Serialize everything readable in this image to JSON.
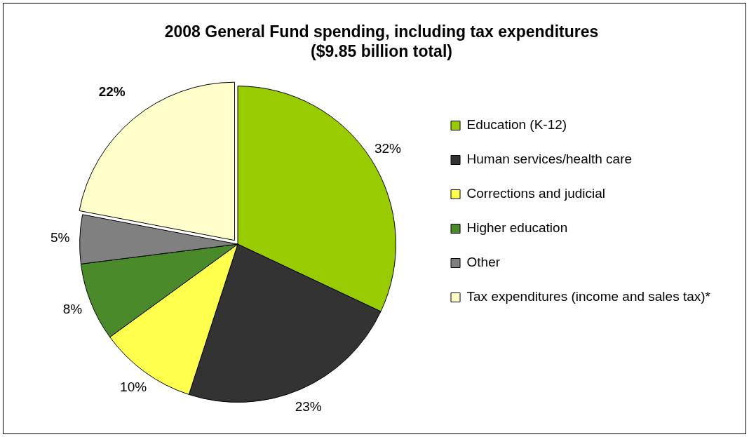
{
  "chart_data": {
    "type": "pie",
    "title": "2008 General Fund spending, including tax expenditures",
    "subtitle": "($9.85 billion total)",
    "categories": [
      "Education (K-12)",
      "Human services/health care",
      "Corrections and judicial",
      "Higher education",
      "Other",
      "Tax expenditures (income and sales tax)*"
    ],
    "values": [
      32,
      23,
      10,
      8,
      5,
      22
    ],
    "colors": [
      "#99cc00",
      "#333333",
      "#ffff4d",
      "#4a8a2a",
      "#808080",
      "#ffffcc"
    ],
    "value_labels": [
      "32%",
      "23%",
      "10%",
      "8%",
      "5%",
      "22%"
    ],
    "legend": "right"
  }
}
